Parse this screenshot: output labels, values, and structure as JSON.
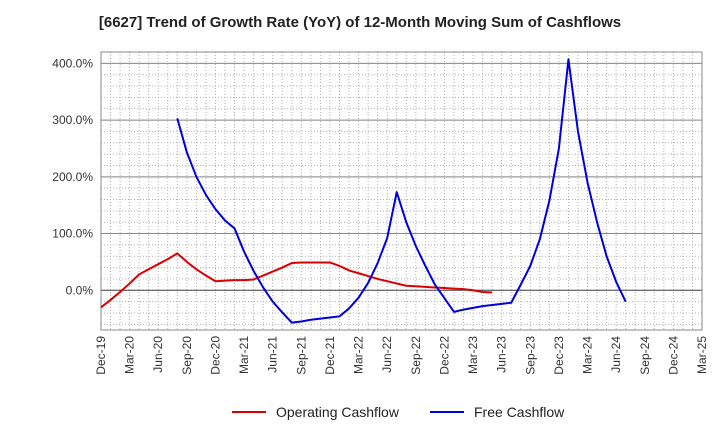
{
  "chart_data": {
    "type": "line",
    "title": "[6627]  Trend of Growth Rate (YoY) of 12-Month Moving Sum of Cashflows",
    "xlabel": "",
    "ylabel": "",
    "x_tick_labels": [
      "Dec-19",
      "Mar-20",
      "Jun-20",
      "Sep-20",
      "Dec-20",
      "Mar-21",
      "Jun-21",
      "Sep-21",
      "Dec-21",
      "Mar-22",
      "Jun-22",
      "Sep-22",
      "Dec-22",
      "Mar-23",
      "Jun-23",
      "Sep-23",
      "Dec-23",
      "Mar-24",
      "Jun-24",
      "Sep-24",
      "Dec-24",
      "Mar-25"
    ],
    "y_tick_labels": [
      "0.0%",
      "100.0%",
      "200.0%",
      "300.0%",
      "400.0%"
    ],
    "y_ticks": [
      0,
      100,
      200,
      300,
      400
    ],
    "ylim": [
      -70,
      420
    ],
    "grid": true,
    "legend_position": "bottom-center",
    "series": [
      {
        "name": "Operating Cashflow",
        "color": "#dd0000",
        "points": [
          [
            0,
            -30
          ],
          [
            1,
            -17
          ],
          [
            2,
            -3
          ],
          [
            3,
            12
          ],
          [
            4,
            28
          ],
          [
            5,
            37
          ],
          [
            6,
            46
          ],
          [
            7,
            55
          ],
          [
            8,
            65
          ],
          [
            9,
            50
          ],
          [
            10,
            37
          ],
          [
            11,
            26
          ],
          [
            12,
            16
          ],
          [
            13,
            17
          ],
          [
            14,
            18
          ],
          [
            15,
            18
          ],
          [
            16,
            19
          ],
          [
            17,
            26
          ],
          [
            18,
            33
          ],
          [
            19,
            40
          ],
          [
            20,
            48
          ],
          [
            21,
            49
          ],
          [
            22,
            49
          ],
          [
            23,
            49
          ],
          [
            24,
            49
          ],
          [
            25,
            43
          ],
          [
            26,
            35
          ],
          [
            27,
            30
          ],
          [
            28,
            25
          ],
          [
            29,
            20
          ],
          [
            30,
            16
          ],
          [
            31,
            12
          ],
          [
            32,
            8
          ],
          [
            33,
            7
          ],
          [
            34,
            6
          ],
          [
            35,
            5
          ],
          [
            36,
            4
          ],
          [
            37,
            3
          ],
          [
            38,
            2
          ],
          [
            39,
            0
          ],
          [
            40,
            -3
          ],
          [
            41,
            -4
          ]
        ]
      },
      {
        "name": "Free Cashflow",
        "color": "#0000dd",
        "points": [
          [
            8,
            303
          ],
          [
            9,
            243
          ],
          [
            10,
            200
          ],
          [
            11,
            168
          ],
          [
            12,
            143
          ],
          [
            13,
            123
          ],
          [
            14,
            109
          ],
          [
            15,
            68
          ],
          [
            16,
            34
          ],
          [
            17,
            5
          ],
          [
            18,
            -20
          ],
          [
            19,
            -39
          ],
          [
            20,
            -57
          ],
          [
            21,
            -55
          ],
          [
            22,
            -52
          ],
          [
            23,
            -50
          ],
          [
            24,
            -48
          ],
          [
            25,
            -46
          ],
          [
            26,
            -32
          ],
          [
            27,
            -13
          ],
          [
            28,
            13
          ],
          [
            29,
            48
          ],
          [
            30,
            92
          ],
          [
            31,
            173
          ],
          [
            32,
            120
          ],
          [
            33,
            78
          ],
          [
            34,
            43
          ],
          [
            35,
            10
          ],
          [
            36,
            -14
          ],
          [
            37,
            -38
          ],
          [
            38,
            -34
          ],
          [
            39,
            -31
          ],
          [
            40,
            -28
          ],
          [
            41,
            -26
          ],
          [
            42,
            -24
          ],
          [
            43,
            -22
          ],
          [
            44,
            10
          ],
          [
            45,
            43
          ],
          [
            46,
            90
          ],
          [
            47,
            158
          ],
          [
            48,
            250
          ],
          [
            49,
            407
          ],
          [
            50,
            280
          ],
          [
            51,
            190
          ],
          [
            52,
            120
          ],
          [
            53,
            60
          ],
          [
            54,
            15
          ],
          [
            55,
            -20
          ]
        ]
      }
    ]
  }
}
